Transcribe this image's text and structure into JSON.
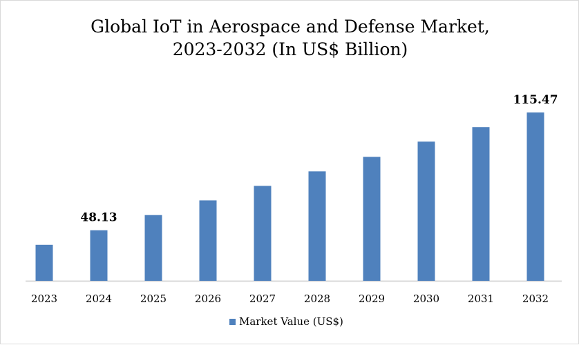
{
  "chart_data": {
    "type": "bar",
    "title": "Global IoT in Aerospace and Defense Market, 2023-2032 (In US$ Billion)",
    "title_lines": [
      "Global IoT in Aerospace and Defense Market,",
      "2023-2032 (In US$ Billion)"
    ],
    "categories": [
      "2023",
      "2024",
      "2025",
      "2026",
      "2027",
      "2028",
      "2029",
      "2030",
      "2031",
      "2032"
    ],
    "series": [
      {
        "name": "Market Value (US$)",
        "values": [
          39.8,
          48.13,
          56.8,
          65.2,
          73.5,
          81.8,
          90.1,
          98.8,
          107.1,
          115.47
        ],
        "color": "#4f81bd"
      }
    ],
    "data_labels": {
      "2024": "48.13",
      "2032": "115.47"
    },
    "ylim": [
      19.2,
      118
    ],
    "y_axis_visible": false,
    "grid": false,
    "legend": "bottom"
  }
}
